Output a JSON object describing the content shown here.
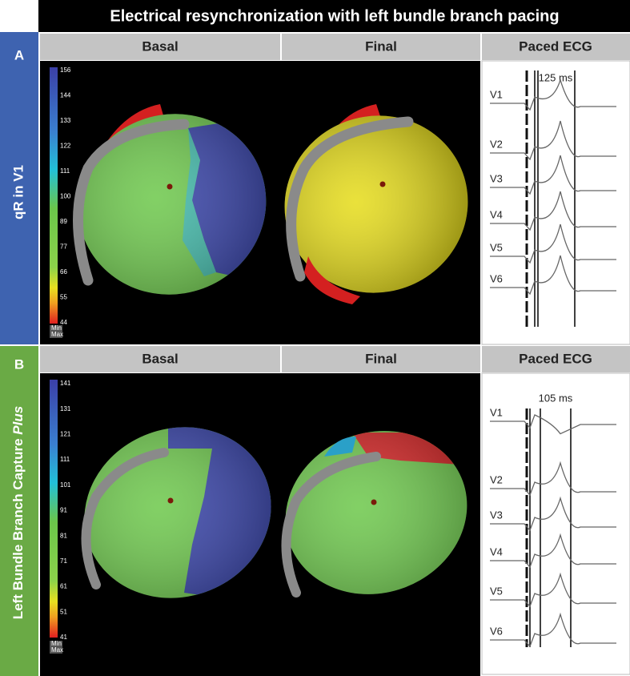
{
  "title": "Electrical resynchronization with left bundle branch pacing",
  "panels": [
    {
      "letter": "A",
      "side_label": "qR in V1",
      "columns": [
        "Basal",
        "Final",
        "Paced ECG"
      ],
      "colorbar": {
        "ticks": [
          156,
          144,
          133,
          122,
          111,
          100,
          89,
          77,
          66,
          55,
          44
        ],
        "min_label": "Min",
        "max_label": "Max"
      },
      "ecg": {
        "interval": "125 ms",
        "leads": [
          "V1",
          "V2",
          "V3",
          "V4",
          "V5",
          "V6"
        ]
      }
    },
    {
      "letter": "B",
      "side_label": "Left Bundle Branch Capture",
      "side_label_italic": "Plus",
      "columns": [
        "Basal",
        "Final",
        "Paced ECG"
      ],
      "colorbar": {
        "ticks": [
          141,
          131,
          121,
          111,
          101,
          91,
          81,
          71,
          61,
          51,
          41
        ],
        "min_label": "Min",
        "max_label": "Max"
      },
      "ecg": {
        "interval": "105 ms",
        "leads": [
          "V1",
          "V2",
          "V3",
          "V4",
          "V5",
          "V6"
        ]
      }
    }
  ]
}
